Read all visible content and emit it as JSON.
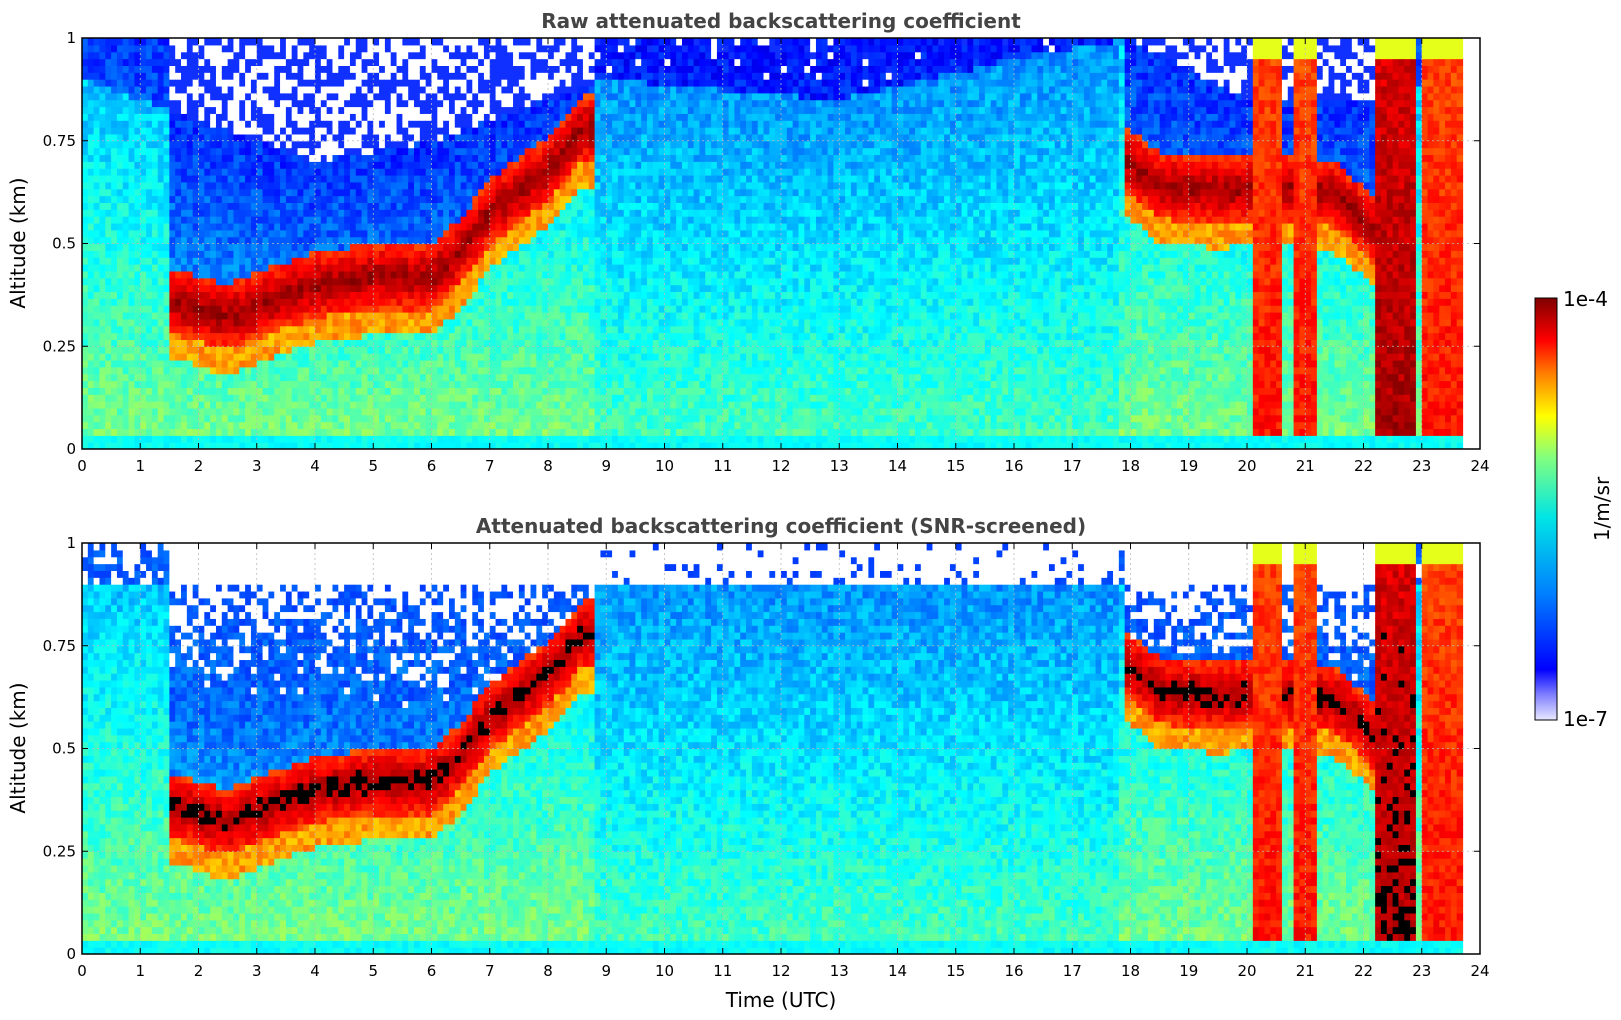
{
  "chart_data": [
    {
      "type": "heatmap",
      "title": "Raw attenuated backscattering coefficient",
      "xlabel": "",
      "ylabel": "Altitude (km)",
      "xlim": [
        0,
        24
      ],
      "ylim": [
        0,
        1
      ],
      "x_ticks": [
        "0",
        "1",
        "2",
        "3",
        "4",
        "5",
        "6",
        "7",
        "8",
        "9",
        "10",
        "11",
        "12",
        "13",
        "14",
        "15",
        "16",
        "17",
        "18",
        "19",
        "20",
        "21",
        "22",
        "23",
        "24"
      ],
      "y_ticks": [
        "0",
        "0.25",
        "0.5",
        "0.75",
        "1"
      ],
      "grid": true,
      "screened": false,
      "cloud_layer_km": [
        [
          1.6,
          0.36
        ],
        [
          2.5,
          0.32
        ],
        [
          3.2,
          0.36
        ],
        [
          4.0,
          0.4
        ],
        [
          5.0,
          0.42
        ],
        [
          6.0,
          0.42
        ],
        [
          6.5,
          0.48
        ],
        [
          7.0,
          0.58
        ],
        [
          7.5,
          0.63
        ],
        [
          8.0,
          0.68
        ],
        [
          8.6,
          0.78
        ],
        [
          18.0,
          0.7
        ],
        [
          18.5,
          0.64
        ],
        [
          19.5,
          0.63
        ],
        [
          20.5,
          0.64
        ],
        [
          21.5,
          0.62
        ],
        [
          22.0,
          0.56
        ],
        [
          22.5,
          0.48
        ]
      ],
      "aerosol_top_km": [
        [
          0,
          0.9
        ],
        [
          2,
          0.8
        ],
        [
          4,
          0.7
        ],
        [
          6,
          0.75
        ],
        [
          9,
          0.9
        ],
        [
          13,
          0.85
        ],
        [
          16,
          0.95
        ],
        [
          18,
          1.0
        ],
        [
          20,
          0.85
        ],
        [
          22,
          0.85
        ],
        [
          23.7,
          0.9
        ]
      ],
      "rain_columns_utc": [
        [
          20.15,
          20.6
        ],
        [
          20.8,
          21.2
        ],
        [
          22.2,
          22.85
        ],
        [
          23.0,
          23.7
        ]
      ]
    },
    {
      "type": "heatmap",
      "title": "Attenuated backscattering coefficient (SNR-screened)",
      "xlabel": "Time (UTC)",
      "ylabel": "Altitude (km)",
      "xlim": [
        0,
        24
      ],
      "ylim": [
        0,
        1
      ],
      "x_ticks": [
        "0",
        "1",
        "2",
        "3",
        "4",
        "5",
        "6",
        "7",
        "8",
        "9",
        "10",
        "11",
        "12",
        "13",
        "14",
        "15",
        "16",
        "17",
        "18",
        "19",
        "20",
        "21",
        "22",
        "23",
        "24"
      ],
      "y_ticks": [
        "0",
        "0.25",
        "0.5",
        "0.75",
        "1"
      ],
      "grid": true,
      "screened": true,
      "cloud_layer_km": [
        [
          1.6,
          0.36
        ],
        [
          2.5,
          0.32
        ],
        [
          3.2,
          0.36
        ],
        [
          4.0,
          0.4
        ],
        [
          5.0,
          0.42
        ],
        [
          6.0,
          0.42
        ],
        [
          6.5,
          0.48
        ],
        [
          7.0,
          0.58
        ],
        [
          7.5,
          0.63
        ],
        [
          8.0,
          0.68
        ],
        [
          8.6,
          0.78
        ],
        [
          18.0,
          0.7
        ],
        [
          18.5,
          0.64
        ],
        [
          19.5,
          0.63
        ],
        [
          20.5,
          0.64
        ],
        [
          21.5,
          0.62
        ],
        [
          22.0,
          0.56
        ],
        [
          22.5,
          0.48
        ]
      ],
      "rain_columns_utc": [
        [
          20.15,
          20.6
        ],
        [
          20.8,
          21.2
        ],
        [
          22.2,
          22.85
        ],
        [
          23.0,
          23.7
        ]
      ]
    }
  ],
  "colorbar": {
    "label": "1/m/sr",
    "min_label": "1e-7",
    "max_label": "1e-4",
    "colormap": "jet"
  },
  "colors": {
    "title": "#444444",
    "grid": "#bbbbbb",
    "low": "#0000cc",
    "mid": "#00e6c8",
    "high": "#990000",
    "saturated": "#000000"
  }
}
